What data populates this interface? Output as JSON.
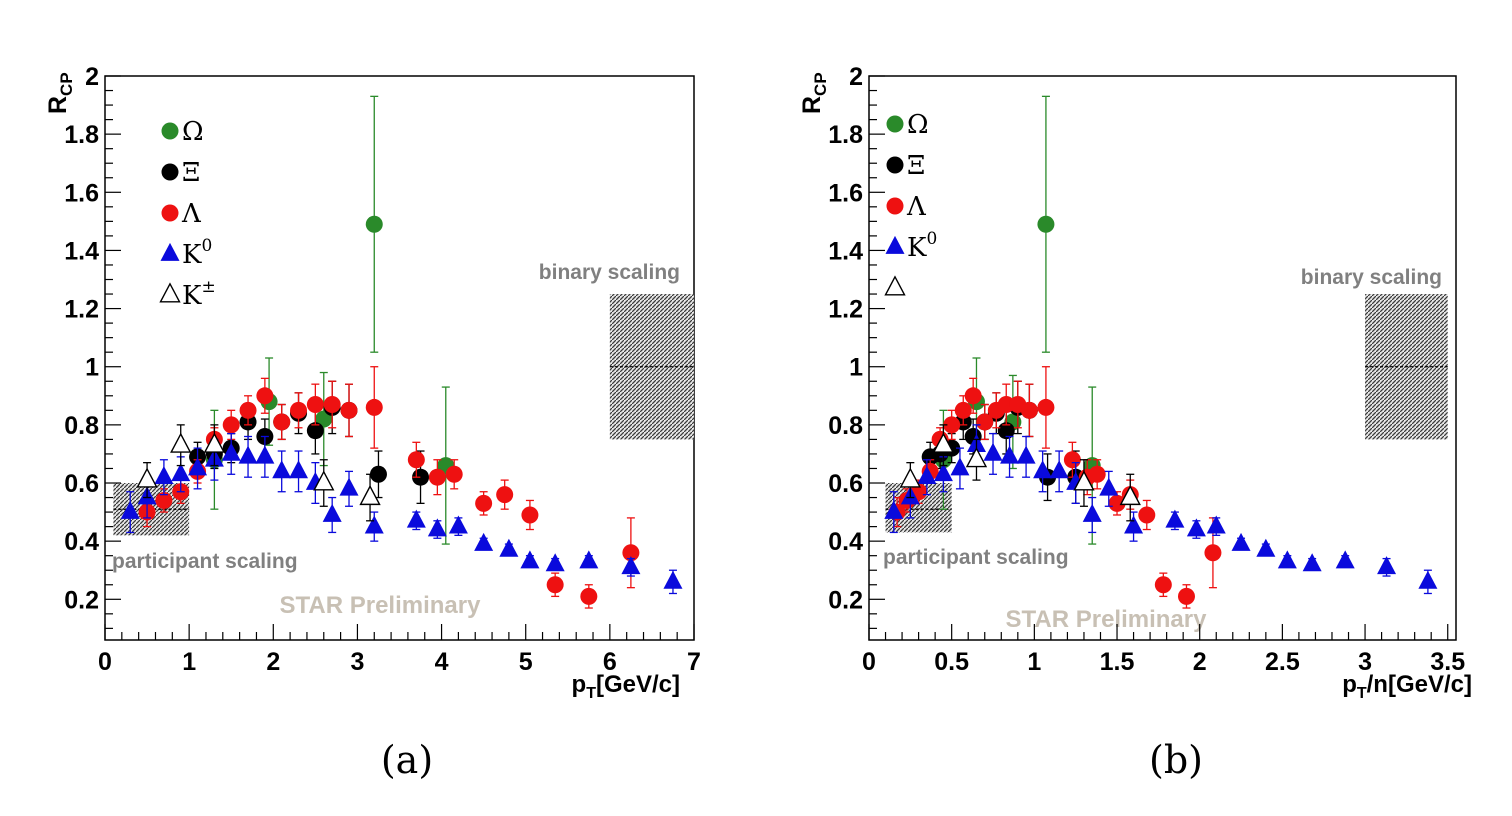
{
  "colors": {
    "omega": "#2a8a2a",
    "xi": "#000000",
    "lambda": "#ee1111",
    "k0": "#0a0adc",
    "kpm": "#000000",
    "label_gray": "#808080",
    "watermark": "#c8c0b4"
  },
  "chart_data": [
    {
      "type": "scatter",
      "caption": "(a)",
      "ylabel": "R",
      "ylabel_sub": "CP",
      "xlabel": "p",
      "xlabel_sub": "T",
      "xlabel_rest": "[GeV/c]",
      "xlim": [
        0,
        7
      ],
      "ylim": [
        0.06,
        2.0
      ],
      "x_ticks": [
        0,
        1,
        2,
        3,
        4,
        5,
        6,
        7
      ],
      "x_tick_labels": [
        "0",
        "1",
        "2",
        "3",
        "4",
        "5",
        "6",
        "7"
      ],
      "y_ticks": [
        0.2,
        0.4,
        0.6,
        0.8,
        1.0,
        1.2,
        1.4,
        1.6,
        1.8,
        2.0
      ],
      "y_tick_labels": [
        "0.2",
        "0.4",
        "0.6",
        "0.8",
        "1",
        "1.2",
        "1.4",
        "1.6",
        "1.8",
        "2"
      ],
      "legend": {
        "placement": "top-left",
        "entries": [
          {
            "series": "omega",
            "label": "Ω",
            "sup": ""
          },
          {
            "series": "xi",
            "label": "Ξ",
            "sup": ""
          },
          {
            "series": "lambda",
            "label": "Λ",
            "sup": ""
          },
          {
            "series": "k0",
            "label": "K",
            "sup": "0"
          },
          {
            "series": "kpm",
            "label": "K",
            "sup": "±"
          }
        ]
      },
      "bands": [
        {
          "label": "binary scaling",
          "x0": 6.0,
          "x1": 7.0,
          "y0": 0.75,
          "y1": 1.25,
          "center": 1.0
        },
        {
          "label": "participant scaling",
          "x0": 0.1,
          "x1": 1.0,
          "y0": 0.42,
          "y1": 0.6,
          "center": 0.51
        }
      ],
      "watermark": "STAR Preliminary",
      "series": [
        {
          "key": "omega",
          "marker": "circle",
          "points": [
            [
              1.3,
              0.68,
              0.17
            ],
            [
              1.95,
              0.88,
              0.15
            ],
            [
              2.6,
              0.82,
              0.16
            ],
            [
              3.2,
              1.49,
              0.44
            ],
            [
              4.05,
              0.66,
              0.27
            ]
          ]
        },
        {
          "key": "xi",
          "marker": "circle",
          "points": [
            [
              1.1,
              0.69,
              0.05
            ],
            [
              1.3,
              0.7,
              0.05
            ],
            [
              1.5,
              0.72,
              0.05
            ],
            [
              1.7,
              0.81,
              0.06
            ],
            [
              1.9,
              0.76,
              0.06
            ],
            [
              2.1,
              0.81,
              0.06
            ],
            [
              2.3,
              0.84,
              0.07
            ],
            [
              2.5,
              0.78,
              0.08
            ],
            [
              2.7,
              0.86,
              0.09
            ],
            [
              2.9,
              0.85,
              0.09
            ],
            [
              3.25,
              0.63,
              0.08
            ],
            [
              3.75,
              0.62,
              0.09
            ]
          ]
        },
        {
          "key": "lambda",
          "marker": "circle",
          "points": [
            [
              0.5,
              0.5,
              0.05
            ],
            [
              0.7,
              0.54,
              0.04
            ],
            [
              0.9,
              0.57,
              0.04
            ],
            [
              1.1,
              0.64,
              0.04
            ],
            [
              1.3,
              0.75,
              0.04
            ],
            [
              1.5,
              0.8,
              0.05
            ],
            [
              1.7,
              0.85,
              0.05
            ],
            [
              1.9,
              0.9,
              0.06
            ],
            [
              2.1,
              0.81,
              0.06
            ],
            [
              2.3,
              0.85,
              0.06
            ],
            [
              2.5,
              0.87,
              0.07
            ],
            [
              2.7,
              0.87,
              0.08
            ],
            [
              2.9,
              0.85,
              0.09
            ],
            [
              3.2,
              0.86,
              0.14
            ],
            [
              3.7,
              0.68,
              0.06
            ],
            [
              3.95,
              0.62,
              0.06
            ],
            [
              4.15,
              0.63,
              0.05
            ],
            [
              4.5,
              0.53,
              0.04
            ],
            [
              4.75,
              0.56,
              0.05
            ],
            [
              5.05,
              0.49,
              0.05
            ],
            [
              5.35,
              0.25,
              0.04
            ],
            [
              5.75,
              0.21,
              0.04
            ],
            [
              6.25,
              0.36,
              0.12
            ]
          ]
        },
        {
          "key": "k0",
          "marker": "triangle",
          "points": [
            [
              0.3,
              0.5,
              0.07
            ],
            [
              0.5,
              0.55,
              0.07
            ],
            [
              0.7,
              0.62,
              0.06
            ],
            [
              0.9,
              0.63,
              0.06
            ],
            [
              1.1,
              0.65,
              0.07
            ],
            [
              1.3,
              0.68,
              0.07
            ],
            [
              1.5,
              0.7,
              0.07
            ],
            [
              1.7,
              0.69,
              0.07
            ],
            [
              1.9,
              0.69,
              0.07
            ],
            [
              2.1,
              0.64,
              0.07
            ],
            [
              2.3,
              0.64,
              0.07
            ],
            [
              2.5,
              0.6,
              0.07
            ],
            [
              2.7,
              0.49,
              0.06
            ],
            [
              2.9,
              0.58,
              0.06
            ],
            [
              3.2,
              0.45,
              0.05
            ],
            [
              3.7,
              0.47,
              0.03
            ],
            [
              3.95,
              0.44,
              0.03
            ],
            [
              4.2,
              0.45,
              0.03
            ],
            [
              4.5,
              0.39,
              0.02
            ],
            [
              4.8,
              0.37,
              0.02
            ],
            [
              5.05,
              0.33,
              0.02
            ],
            [
              5.35,
              0.32,
              0.02
            ],
            [
              5.75,
              0.33,
              0.02
            ],
            [
              6.25,
              0.31,
              0.03
            ],
            [
              6.75,
              0.26,
              0.04
            ]
          ]
        },
        {
          "key": "kpm",
          "marker": "triangle-open",
          "points": [
            [
              0.5,
              0.61,
              0.06
            ],
            [
              0.9,
              0.73,
              0.07
            ],
            [
              1.3,
              0.73,
              0.07
            ],
            [
              2.6,
              0.6,
              0.08
            ],
            [
              3.15,
              0.55,
              0.08
            ]
          ]
        }
      ]
    },
    {
      "type": "scatter",
      "caption": "(b)",
      "ylabel": "R",
      "ylabel_sub": "CP",
      "xlabel": "p",
      "xlabel_sub": "T",
      "xlabel_rest": "/n[GeV/c]",
      "xlim": [
        0,
        3.55
      ],
      "ylim": [
        0.06,
        2.0
      ],
      "x_ticks": [
        0,
        0.5,
        1,
        1.5,
        2,
        2.5,
        3,
        3.5
      ],
      "x_tick_labels": [
        "0",
        "0.5",
        "1",
        "1.5",
        "2",
        "2.5",
        "3",
        "3.5"
      ],
      "y_ticks": [
        0.2,
        0.4,
        0.6,
        0.8,
        1.0,
        1.2,
        1.4,
        1.6,
        1.8,
        2.0
      ],
      "y_tick_labels": [
        "0.2",
        "0.4",
        "0.6",
        "0.8",
        "1",
        "1.2",
        "1.4",
        "1.6",
        "1.8",
        "2"
      ],
      "legend": {
        "placement": "top-left",
        "entries": [
          {
            "series": "omega",
            "label": "Ω",
            "sup": ""
          },
          {
            "series": "xi",
            "label": "Ξ",
            "sup": ""
          },
          {
            "series": "lambda",
            "label": "Λ",
            "sup": ""
          },
          {
            "series": "k0",
            "label": "K",
            "sup": "0"
          },
          {
            "series": "kpm",
            "label": "",
            "sup": ""
          }
        ]
      },
      "bands": [
        {
          "label": "binary scaling",
          "x0": 3.0,
          "x1": 3.5,
          "y0": 0.75,
          "y1": 1.25,
          "center": 1.0
        },
        {
          "label": "participant scaling",
          "x0": 0.1,
          "x1": 0.5,
          "y0": 0.43,
          "y1": 0.6,
          "center": 0.51
        }
      ],
      "watermark": "STAR Preliminary",
      "series": [
        {
          "key": "omega",
          "marker": "circle",
          "points": [
            [
              0.45,
              0.68,
              0.17
            ],
            [
              0.65,
              0.88,
              0.15
            ],
            [
              0.87,
              0.81,
              0.16
            ],
            [
              1.07,
              1.49,
              0.44
            ],
            [
              1.35,
              0.66,
              0.27
            ]
          ]
        },
        {
          "key": "xi",
          "marker": "circle",
          "points": [
            [
              0.37,
              0.69,
              0.05
            ],
            [
              0.43,
              0.7,
              0.05
            ],
            [
              0.5,
              0.72,
              0.05
            ],
            [
              0.57,
              0.81,
              0.06
            ],
            [
              0.63,
              0.76,
              0.06
            ],
            [
              0.7,
              0.81,
              0.06
            ],
            [
              0.77,
              0.84,
              0.07
            ],
            [
              0.83,
              0.78,
              0.08
            ],
            [
              0.9,
              0.86,
              0.09
            ],
            [
              0.97,
              0.85,
              0.09
            ],
            [
              1.08,
              0.62,
              0.08
            ],
            [
              1.25,
              0.62,
              0.09
            ]
          ]
        },
        {
          "key": "lambda",
          "marker": "circle",
          "points": [
            [
              0.17,
              0.5,
              0.05
            ],
            [
              0.23,
              0.54,
              0.04
            ],
            [
              0.3,
              0.57,
              0.04
            ],
            [
              0.37,
              0.64,
              0.04
            ],
            [
              0.43,
              0.75,
              0.04
            ],
            [
              0.5,
              0.8,
              0.05
            ],
            [
              0.57,
              0.85,
              0.05
            ],
            [
              0.63,
              0.9,
              0.06
            ],
            [
              0.7,
              0.81,
              0.06
            ],
            [
              0.77,
              0.85,
              0.06
            ],
            [
              0.83,
              0.87,
              0.07
            ],
            [
              0.9,
              0.87,
              0.08
            ],
            [
              0.97,
              0.85,
              0.09
            ],
            [
              1.07,
              0.86,
              0.14
            ],
            [
              1.23,
              0.68,
              0.06
            ],
            [
              1.32,
              0.62,
              0.06
            ],
            [
              1.38,
              0.63,
              0.05
            ],
            [
              1.5,
              0.53,
              0.04
            ],
            [
              1.58,
              0.56,
              0.05
            ],
            [
              1.68,
              0.49,
              0.05
            ],
            [
              1.78,
              0.25,
              0.04
            ],
            [
              1.92,
              0.21,
              0.04
            ],
            [
              2.08,
              0.36,
              0.12
            ]
          ]
        },
        {
          "key": "k0",
          "marker": "triangle",
          "points": [
            [
              0.15,
              0.5,
              0.07
            ],
            [
              0.25,
              0.55,
              0.07
            ],
            [
              0.35,
              0.62,
              0.06
            ],
            [
              0.45,
              0.63,
              0.06
            ],
            [
              0.55,
              0.65,
              0.07
            ],
            [
              0.65,
              0.73,
              0.07
            ],
            [
              0.75,
              0.7,
              0.07
            ],
            [
              0.85,
              0.69,
              0.07
            ],
            [
              0.95,
              0.69,
              0.07
            ],
            [
              1.05,
              0.64,
              0.07
            ],
            [
              1.15,
              0.64,
              0.07
            ],
            [
              1.25,
              0.6,
              0.07
            ],
            [
              1.35,
              0.49,
              0.06
            ],
            [
              1.45,
              0.58,
              0.06
            ],
            [
              1.6,
              0.45,
              0.05
            ],
            [
              1.85,
              0.47,
              0.03
            ],
            [
              1.98,
              0.44,
              0.03
            ],
            [
              2.1,
              0.45,
              0.03
            ],
            [
              2.25,
              0.39,
              0.02
            ],
            [
              2.4,
              0.37,
              0.02
            ],
            [
              2.53,
              0.33,
              0.02
            ],
            [
              2.68,
              0.32,
              0.02
            ],
            [
              2.88,
              0.33,
              0.02
            ],
            [
              3.13,
              0.31,
              0.03
            ],
            [
              3.38,
              0.26,
              0.04
            ]
          ]
        },
        {
          "key": "kpm",
          "marker": "triangle-open",
          "points": [
            [
              0.25,
              0.61,
              0.06
            ],
            [
              0.45,
              0.73,
              0.07
            ],
            [
              0.65,
              0.68,
              0.07
            ],
            [
              1.3,
              0.6,
              0.08
            ],
            [
              1.58,
              0.55,
              0.08
            ]
          ]
        }
      ]
    }
  ]
}
